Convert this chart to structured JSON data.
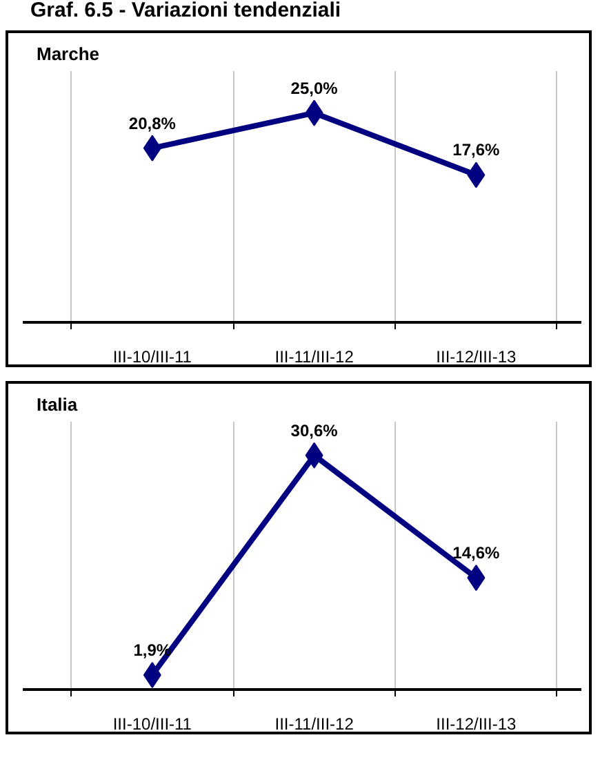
{
  "chart_data": [
    {
      "type": "line",
      "title": "Graf. 6.5 - Variazioni tendenziali",
      "subtitle": "Marche",
      "categories": [
        "III-10/III-11",
        "III-11/III-12",
        "III-12/III-13"
      ],
      "series": [
        {
          "color": "#000080",
          "values": [
            20.8,
            25.0,
            17.6
          ],
          "value_labels": [
            "20,8%",
            "25,0%",
            "17,6%"
          ]
        }
      ],
      "ylim": [
        0,
        30
      ],
      "tick_labels": "x",
      "grid": "x",
      "marker": "diamond",
      "line_style": "solid"
    },
    {
      "type": "line",
      "subtitle": "Italia",
      "categories": [
        "III-10/III-11",
        "III-11/III-12",
        "III-12/III-13"
      ],
      "series": [
        {
          "color": "#000080",
          "values": [
            1.9,
            30.6,
            14.6
          ],
          "value_labels": [
            "1,9%",
            "30,6%",
            "14,6%"
          ]
        }
      ],
      "ylim": [
        0,
        35
      ],
      "tick_labels": "x",
      "grid": "x",
      "marker": "diamond",
      "line_style": "solid"
    }
  ]
}
